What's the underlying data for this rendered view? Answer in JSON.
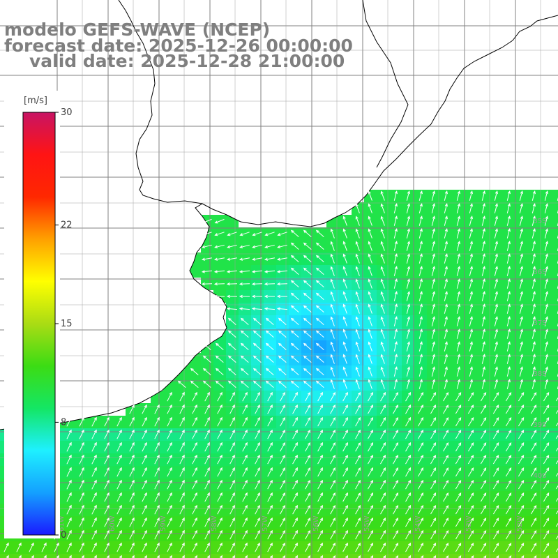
{
  "title": {
    "model": "modelo GEFS-WAVE (NCEP)",
    "forecast_date": "forecast date: 2025-12-26 00:00:00",
    "valid_date": "valid date: 2025-12-28 21:00:00"
  },
  "colorbar": {
    "unit": "[m/s]",
    "ticks": [
      {
        "value": 30,
        "label": "30"
      },
      {
        "value": 22,
        "label": "22"
      },
      {
        "value": 15,
        "label": "15"
      },
      {
        "value": 8,
        "label": "8"
      },
      {
        "value": 0,
        "label": "0"
      }
    ],
    "min": 0,
    "max": 30,
    "colors": [
      "#1a1aff",
      "#14a0ff",
      "#1ef0ff",
      "#14e664",
      "#3cdc14",
      "#aadc14",
      "#ffff00",
      "#ffa000",
      "#ff2800",
      "#ff1414",
      "#c81464"
    ]
  },
  "lat_labels": [
    "35S",
    "36S",
    "37S",
    "38S",
    "39S",
    "40S"
  ],
  "lon_labels": [
    "62W",
    "61W",
    "60W",
    "59W",
    "58W",
    "57W",
    "56W",
    "55W",
    "54W",
    "53W",
    "52W"
  ],
  "colors": {
    "title_gray": "#7f7f7f",
    "land": "#ffffff",
    "coast": "#000000",
    "grid": "#808080",
    "arrow": "#ffffff"
  }
}
